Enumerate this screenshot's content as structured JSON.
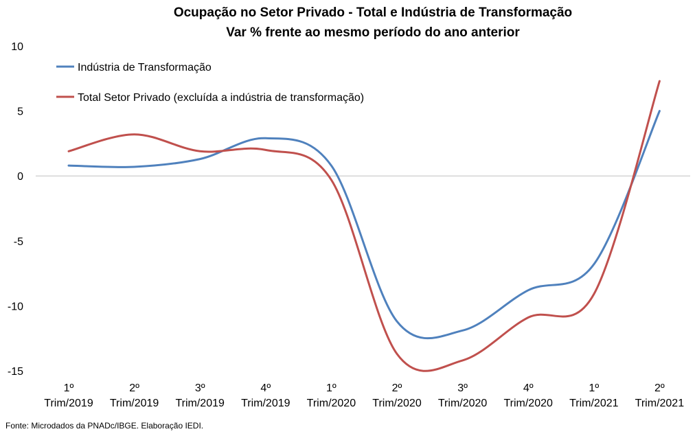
{
  "chart_data": {
    "type": "line",
    "title": "Ocupação no Setor Privado - Total e Indústria de Transformação",
    "subtitle": "Var % frente ao mesmo período do ano anterior",
    "source": "Fonte: Microdados da PNADc/IBGE. Elaboração IEDI.",
    "categories": [
      [
        "1º",
        "Trim/2019"
      ],
      [
        "2º",
        "Trim/2019"
      ],
      [
        "3º",
        "Trim/2019"
      ],
      [
        "4º",
        "Trim/2019"
      ],
      [
        "1º",
        "Trim/2020"
      ],
      [
        "2º",
        "Trim/2020"
      ],
      [
        "3º",
        "Trim/2020"
      ],
      [
        "4º",
        "Trim/2020"
      ],
      [
        "1º",
        "Trim/2021"
      ],
      [
        "2º",
        "Trim/2021"
      ]
    ],
    "ylim": [
      -15,
      10
    ],
    "yticks": [
      10,
      5,
      0,
      -5,
      -10,
      -15
    ],
    "grid": false,
    "zero_line": true,
    "legend_position": "top-left",
    "series": [
      {
        "name": "Indústria de Transformação",
        "color": "#4F81BD",
        "values": [
          0.8,
          0.7,
          1.3,
          2.9,
          0.8,
          -11.2,
          -11.9,
          -8.8,
          -6.8,
          5.0
        ]
      },
      {
        "name": "Total Setor Privado (excluída a indústria de transformação)",
        "color": "#C0504D",
        "values": [
          1.9,
          3.2,
          1.9,
          2.0,
          -0.3,
          -13.7,
          -14.2,
          -10.9,
          -9.1,
          7.3
        ]
      }
    ]
  }
}
